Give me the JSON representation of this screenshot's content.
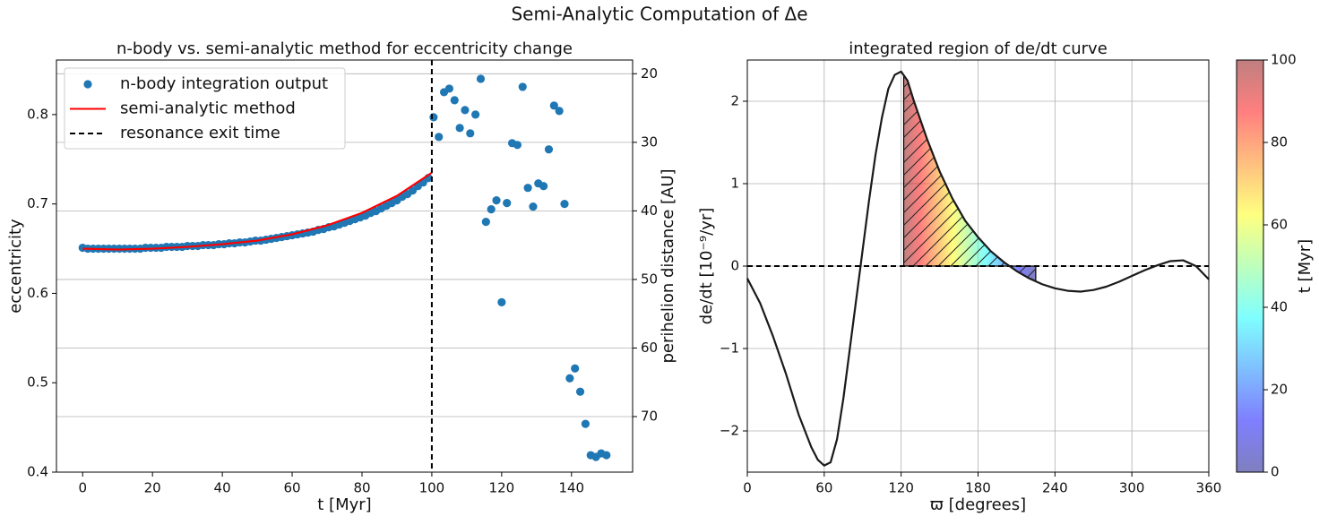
{
  "title": "Semi-Analytic Computation of Δe",
  "chart_data": [
    {
      "type": "scatter",
      "title": "n-body vs. semi-analytic method for eccentricity change",
      "xlabel": "t [Myr]",
      "ylabel": "eccentricity",
      "y2label": "perihelion distance [AU]",
      "xlim": [
        -7.5,
        157.5
      ],
      "ylim": [
        0.4,
        0.861
      ],
      "y2lim": [
        78.1,
        18.0
      ],
      "xticks": [
        0,
        20,
        40,
        60,
        80,
        100,
        120,
        140
      ],
      "yticks": [
        0.4,
        0.5,
        0.6,
        0.7,
        0.8
      ],
      "y2ticks": [
        20,
        30,
        40,
        50,
        60,
        70
      ],
      "grid": "y2",
      "legend": "upper left",
      "series": [
        {
          "name": "n-body integration output",
          "color": "#1f77b4",
          "kind": "scatter",
          "x": [
            0,
            1.5,
            3,
            4.5,
            6,
            7.5,
            9,
            10.5,
            12,
            13.5,
            15,
            16.5,
            18,
            19.5,
            21,
            22.5,
            24,
            25.5,
            27,
            28.5,
            30,
            31.5,
            33,
            34.5,
            36,
            37.5,
            39,
            40.5,
            42,
            43.5,
            45,
            46.5,
            48,
            49.5,
            51,
            52.5,
            54,
            55.5,
            57,
            58.5,
            60,
            61.5,
            63,
            64.5,
            66,
            67.5,
            69,
            70.5,
            72,
            73.5,
            75,
            76.5,
            78,
            79.5,
            81,
            82.5,
            84,
            85.5,
            87,
            88.5,
            90,
            91.5,
            93,
            94.5,
            96,
            97.5,
            99,
            100.5,
            102,
            103.5,
            105,
            106.5,
            108,
            109.5,
            111,
            112.5,
            114,
            115.5,
            117,
            118.5,
            120,
            121.5,
            123,
            124.5,
            126,
            127.5,
            129,
            130.5,
            132,
            133.5,
            135,
            136.5,
            138,
            139.5,
            141,
            142.5,
            144,
            145.5,
            147,
            148.5,
            150
          ],
          "values": [
            0.651,
            0.65,
            0.65,
            0.65,
            0.65,
            0.65,
            0.65,
            0.65,
            0.65,
            0.65,
            0.65,
            0.65,
            0.651,
            0.651,
            0.651,
            0.651,
            0.652,
            0.652,
            0.652,
            0.652,
            0.653,
            0.653,
            0.653,
            0.654,
            0.654,
            0.654,
            0.655,
            0.655,
            0.656,
            0.656,
            0.657,
            0.657,
            0.658,
            0.659,
            0.659,
            0.66,
            0.661,
            0.662,
            0.663,
            0.664,
            0.665,
            0.666,
            0.667,
            0.668,
            0.669,
            0.671,
            0.672,
            0.674,
            0.675,
            0.677,
            0.679,
            0.681,
            0.683,
            0.685,
            0.687,
            0.69,
            0.692,
            0.695,
            0.698,
            0.701,
            0.704,
            0.708,
            0.711,
            0.715,
            0.72,
            0.724,
            0.729,
            0.797,
            0.775,
            0.825,
            0.829,
            0.816,
            0.785,
            0.805,
            0.779,
            0.8,
            0.84,
            0.68,
            0.694,
            0.704,
            0.59,
            0.701,
            0.768,
            0.766,
            0.831,
            0.718,
            0.697,
            0.723,
            0.72,
            0.761,
            0.81,
            0.804,
            0.7,
            0.505,
            0.516,
            0.49,
            0.454,
            0.419,
            0.417,
            0.421,
            0.419
          ]
        },
        {
          "name": "semi-analytic method",
          "color": "#ff0000",
          "kind": "line",
          "x": [
            0,
            10,
            20,
            30,
            40,
            50,
            60,
            70,
            80,
            90,
            100
          ],
          "values": [
            0.65,
            0.649,
            0.65,
            0.652,
            0.655,
            0.659,
            0.666,
            0.676,
            0.69,
            0.709,
            0.735
          ]
        },
        {
          "name": "resonance exit time",
          "color": "#000000",
          "kind": "vline",
          "x": [
            100
          ]
        }
      ]
    },
    {
      "type": "line",
      "title": "integrated region of de/dt curve",
      "xlabel": "ϖ [degrees]",
      "ylabel": "de/dt [10⁻⁹/yr]",
      "xlim": [
        0,
        360
      ],
      "ylim": [
        -2.5,
        2.5
      ],
      "xticks": [
        0,
        60,
        120,
        180,
        240,
        300,
        360
      ],
      "yticks": [
        {
          "value": -2,
          "label": "−2"
        },
        {
          "value": -1,
          "label": "−1"
        },
        0,
        1,
        2
      ],
      "grid": true,
      "hline": 0,
      "series": [
        {
          "color": "#1a1a1a",
          "x": [
            0,
            10,
            20,
            30,
            40,
            50,
            55,
            60,
            65,
            70,
            75,
            80,
            85,
            90,
            95,
            100,
            105,
            110,
            115,
            120,
            125,
            130,
            140,
            150,
            160,
            170,
            180,
            190,
            200,
            210,
            220,
            230,
            240,
            250,
            260,
            270,
            280,
            290,
            300,
            310,
            320,
            330,
            340,
            350,
            360
          ],
          "values": [
            -0.15,
            -0.45,
            -0.85,
            -1.3,
            -1.8,
            -2.2,
            -2.35,
            -2.42,
            -2.38,
            -2.1,
            -1.6,
            -1.0,
            -0.4,
            0.2,
            0.8,
            1.35,
            1.8,
            2.15,
            2.32,
            2.36,
            2.25,
            2.0,
            1.55,
            1.15,
            0.82,
            0.55,
            0.35,
            0.18,
            0.05,
            -0.06,
            -0.15,
            -0.22,
            -0.27,
            -0.3,
            -0.31,
            -0.29,
            -0.25,
            -0.19,
            -0.12,
            -0.05,
            0.01,
            0.06,
            0.07,
            0.0,
            -0.16
          ]
        }
      ],
      "fill": {
        "x": [
          122,
          225
        ],
        "hatch": "//"
      },
      "colorbar": {
        "label": "t [Myr]",
        "lim": [
          0,
          100
        ],
        "ticks": [
          0,
          20,
          40,
          60,
          80,
          100
        ],
        "cmap": "jet",
        "alpha": 0.5
      }
    }
  ]
}
